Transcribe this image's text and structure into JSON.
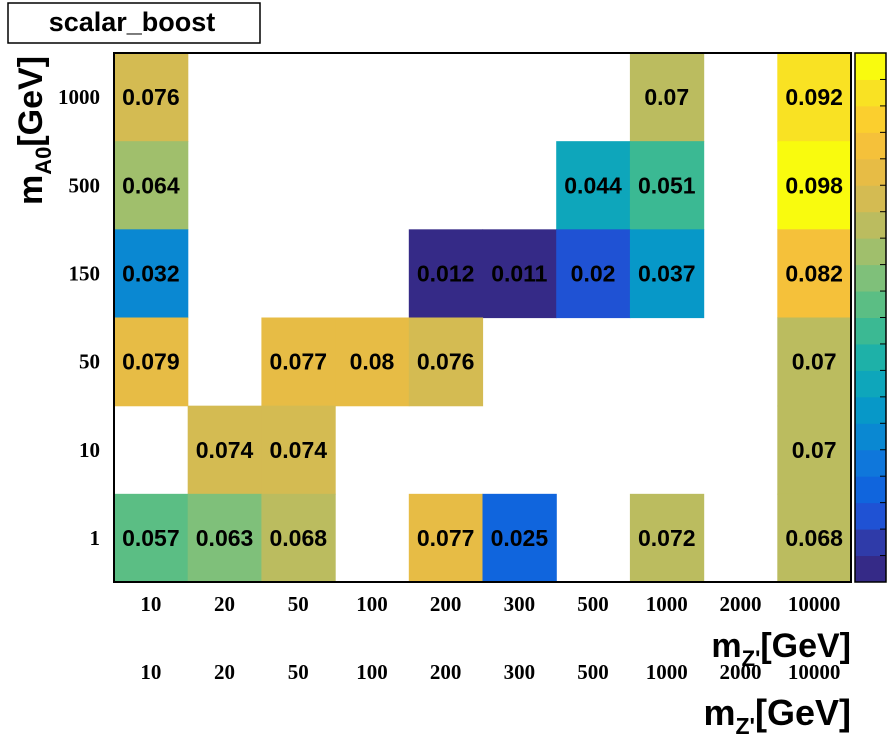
{
  "chart_data": {
    "type": "heatmap",
    "title": "scalar_boost",
    "xlabel": {
      "base": "m",
      "sub": "Z'",
      "unit": "[GeV]"
    },
    "ylabel": {
      "base": "m",
      "sub": "A0",
      "unit": "[GeV]"
    },
    "x_categories": [
      "10",
      "20",
      "50",
      "100",
      "200",
      "300",
      "500",
      "1000",
      "2000",
      "10000"
    ],
    "y_categories": [
      "1",
      "10",
      "50",
      "150",
      "500",
      "1000"
    ],
    "z_range": [
      0.008,
      0.1
    ],
    "cells": [
      {
        "x": "10",
        "y": "1000",
        "value": 0.076,
        "label": "0.076"
      },
      {
        "x": "1000",
        "y": "1000",
        "value": 0.07,
        "label": "0.07"
      },
      {
        "x": "10000",
        "y": "1000",
        "value": 0.092,
        "label": "0.092"
      },
      {
        "x": "10",
        "y": "500",
        "value": 0.064,
        "label": "0.064"
      },
      {
        "x": "500",
        "y": "500",
        "value": 0.044,
        "label": "0.044"
      },
      {
        "x": "1000",
        "y": "500",
        "value": 0.051,
        "label": "0.051"
      },
      {
        "x": "10000",
        "y": "500",
        "value": 0.098,
        "label": "0.098"
      },
      {
        "x": "10",
        "y": "150",
        "value": 0.032,
        "label": "0.032"
      },
      {
        "x": "200",
        "y": "150",
        "value": 0.012,
        "label": "0.012"
      },
      {
        "x": "300",
        "y": "150",
        "value": 0.011,
        "label": "0.011"
      },
      {
        "x": "500",
        "y": "150",
        "value": 0.02,
        "label": "0.02"
      },
      {
        "x": "1000",
        "y": "150",
        "value": 0.037,
        "label": "0.037"
      },
      {
        "x": "10000",
        "y": "150",
        "value": 0.082,
        "label": "0.082"
      },
      {
        "x": "10",
        "y": "50",
        "value": 0.079,
        "label": "0.079"
      },
      {
        "x": "50",
        "y": "50",
        "value": 0.077,
        "label": "0.077"
      },
      {
        "x": "100",
        "y": "50",
        "value": 0.08,
        "label": "0.08"
      },
      {
        "x": "200",
        "y": "50",
        "value": 0.076,
        "label": "0.076"
      },
      {
        "x": "10000",
        "y": "50",
        "value": 0.07,
        "label": "0.07"
      },
      {
        "x": "20",
        "y": "10",
        "value": 0.074,
        "label": "0.074"
      },
      {
        "x": "50",
        "y": "10",
        "value": 0.074,
        "label": "0.074"
      },
      {
        "x": "10000",
        "y": "10",
        "value": 0.07,
        "label": "0.07"
      },
      {
        "x": "10",
        "y": "1",
        "value": 0.057,
        "label": "0.057"
      },
      {
        "x": "20",
        "y": "1",
        "value": 0.063,
        "label": "0.063"
      },
      {
        "x": "50",
        "y": "1",
        "value": 0.068,
        "label": "0.068"
      },
      {
        "x": "200",
        "y": "1",
        "value": 0.077,
        "label": "0.077"
      },
      {
        "x": "300",
        "y": "1",
        "value": 0.025,
        "label": "0.025"
      },
      {
        "x": "1000",
        "y": "1",
        "value": 0.072,
        "label": "0.072"
      },
      {
        "x": "10000",
        "y": "1",
        "value": 0.068,
        "label": "0.068"
      }
    ],
    "palette": [
      "#352a87",
      "#2f3ba9",
      "#1f52d4",
      "#1065dd",
      "#0f77db",
      "#0a88d2",
      "#0798c8",
      "#0ea6bb",
      "#1eb1a8",
      "#3bb993",
      "#5bbe84",
      "#7fc07a",
      "#a0bf6c",
      "#bbbc5f",
      "#d4bb52",
      "#e7bc45",
      "#f5c13a",
      "#fbcf2e",
      "#f9e223",
      "#f9fb0e"
    ],
    "grid": false,
    "colorbar": "right"
  }
}
